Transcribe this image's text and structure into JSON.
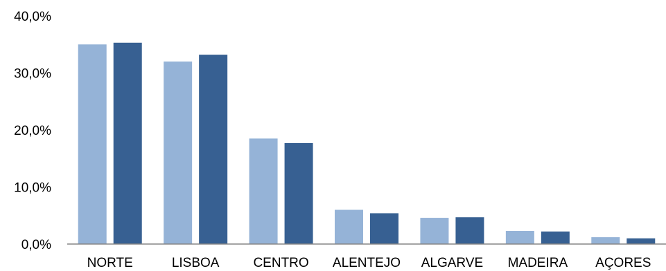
{
  "chart_data": {
    "type": "bar",
    "title": "",
    "xlabel": "",
    "ylabel": "",
    "categories": [
      "NORTE",
      "LISBOA",
      "CENTRO",
      "ALENTEJO",
      "ALGARVE",
      "MADEIRA",
      "AÇORES"
    ],
    "series": [
      {
        "values": [
          35.0,
          32.0,
          18.5,
          6.0,
          4.6,
          2.3,
          1.2
        ],
        "color": "#95b3d7"
      },
      {
        "values": [
          35.3,
          33.2,
          17.7,
          5.4,
          4.7,
          2.2,
          1.0
        ],
        "color": "#376092"
      }
    ],
    "ylim": [
      0,
      40
    ],
    "yticks": [
      0,
      10,
      20,
      30,
      40
    ],
    "ytick_labels": [
      "0,0%",
      "10,0%",
      "20,0%",
      "30,0%",
      "40,0%"
    ],
    "grid": false,
    "legend": "none"
  }
}
